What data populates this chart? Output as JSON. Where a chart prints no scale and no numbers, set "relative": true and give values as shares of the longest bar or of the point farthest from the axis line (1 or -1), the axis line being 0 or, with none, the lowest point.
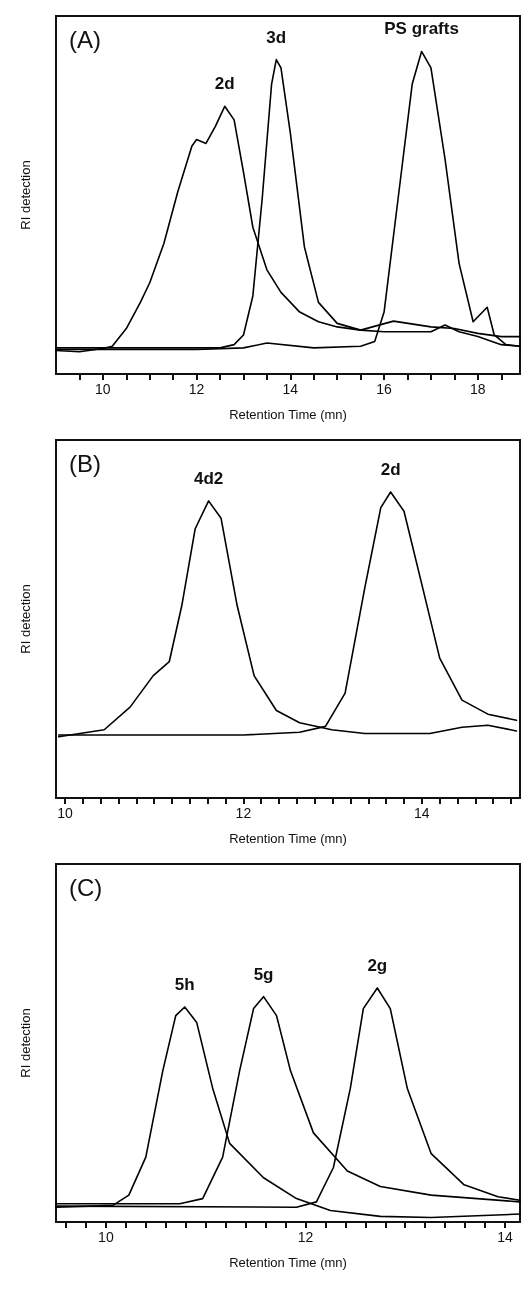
{
  "chart_data": [
    {
      "type": "line",
      "title": "(A)",
      "xlabel": "Retention Time (mn)",
      "ylabel": "RI detection",
      "relative": true,
      "xlim": [
        9,
        18.9
      ],
      "xticks": [
        {
          "value": 9.5,
          "label": null
        },
        10,
        {
          "value": 10.5,
          "label": null
        },
        {
          "value": 11,
          "label": null
        },
        {
          "value": 11.5,
          "label": null
        },
        12,
        {
          "value": 12.5,
          "label": null
        },
        {
          "value": 13,
          "label": null
        },
        {
          "value": 13.5,
          "label": null
        },
        14,
        {
          "value": 14.5,
          "label": null
        },
        {
          "value": 15,
          "label": null
        },
        {
          "value": 15.5,
          "label": null
        },
        16,
        {
          "value": 16.5,
          "label": null
        },
        {
          "value": 17,
          "label": null
        },
        {
          "value": 17.5,
          "label": null
        },
        18,
        {
          "value": 18.5,
          "label": null
        }
      ],
      "grid": false,
      "legend": false,
      "marker": "none",
      "line_style": "solid",
      "series": [
        {
          "name": "2d",
          "color": "#000000",
          "x": [
            9.0,
            9.5,
            10.0,
            10.2,
            10.5,
            10.8,
            11.0,
            11.3,
            11.6,
            11.9,
            12.0,
            12.2,
            12.4,
            12.6,
            12.8,
            13.0,
            13.2,
            13.5,
            13.8,
            14.2,
            14.6,
            15.0,
            15.5,
            16.2,
            17.0,
            17.5,
            18.0,
            18.5,
            18.9
          ],
          "values": [
            0.073,
            0.069,
            0.079,
            0.086,
            0.141,
            0.222,
            0.283,
            0.404,
            0.566,
            0.707,
            0.727,
            0.715,
            0.768,
            0.83,
            0.788,
            0.626,
            0.455,
            0.323,
            0.253,
            0.192,
            0.162,
            0.146,
            0.136,
            0.164,
            0.146,
            0.141,
            0.126,
            0.116,
            0.116
          ]
        },
        {
          "name": "3d",
          "color": "#000000",
          "x": [
            9.0,
            10.0,
            11.0,
            12.0,
            12.5,
            12.8,
            13.0,
            13.2,
            13.4,
            13.6,
            13.7,
            13.8,
            14.0,
            14.3,
            14.6,
            15.0,
            15.5,
            16.0,
            17.0,
            17.3,
            17.6,
            18.0,
            18.5,
            18.9
          ],
          "values": [
            0.081,
            0.081,
            0.081,
            0.081,
            0.081,
            0.091,
            0.121,
            0.242,
            0.545,
            0.899,
            0.975,
            0.949,
            0.747,
            0.394,
            0.222,
            0.157,
            0.136,
            0.131,
            0.131,
            0.152,
            0.131,
            0.116,
            0.091,
            0.086
          ]
        },
        {
          "name": "PS grafts",
          "color": "#000000",
          "x": [
            9.0,
            10.0,
            11.0,
            12.0,
            13.0,
            13.5,
            14.5,
            15.5,
            15.8,
            16.0,
            16.3,
            16.6,
            16.8,
            17.0,
            17.3,
            17.6,
            17.9,
            18.2,
            18.35,
            18.6,
            18.9
          ],
          "values": [
            0.076,
            0.076,
            0.076,
            0.076,
            0.081,
            0.096,
            0.081,
            0.086,
            0.101,
            0.192,
            0.545,
            0.899,
            1.0,
            0.949,
            0.667,
            0.343,
            0.162,
            0.207,
            0.121,
            0.091,
            0.086
          ]
        }
      ]
    },
    {
      "type": "line",
      "title": "(B)",
      "xlabel": "Retention Time (mn)",
      "ylabel": "RI detection",
      "relative": true,
      "xlim": [
        9.9,
        15.1
      ],
      "xticks": [
        10,
        {
          "value": 10.2,
          "label": null
        },
        {
          "value": 10.4,
          "label": null
        },
        {
          "value": 10.6,
          "label": null
        },
        {
          "value": 10.8,
          "label": null
        },
        {
          "value": 11,
          "label": null
        },
        {
          "value": 11.2,
          "label": null
        },
        {
          "value": 11.4,
          "label": null
        },
        {
          "value": 11.6,
          "label": null
        },
        {
          "value": 11.8,
          "label": null
        },
        12,
        {
          "value": 12.2,
          "label": null
        },
        {
          "value": 12.4,
          "label": null
        },
        {
          "value": 12.6,
          "label": null
        },
        {
          "value": 12.8,
          "label": null
        },
        {
          "value": 13,
          "label": null
        },
        {
          "value": 13.2,
          "label": null
        },
        {
          "value": 13.4,
          "label": null
        },
        {
          "value": 13.6,
          "label": null
        },
        {
          "value": 13.8,
          "label": null
        },
        14,
        {
          "value": 14.2,
          "label": null
        },
        {
          "value": 14.4,
          "label": null
        },
        {
          "value": 14.6,
          "label": null
        },
        {
          "value": 14.8,
          "label": null
        },
        {
          "value": 15,
          "label": null
        }
      ],
      "grid": false,
      "legend": false,
      "marker": "none",
      "line_style": "solid",
      "series": [
        {
          "name": "4d2",
          "color": "#000000",
          "x": [
            9.93,
            10.44,
            10.73,
            10.99,
            11.17,
            11.31,
            11.46,
            11.61,
            11.75,
            11.93,
            12.12,
            12.37,
            12.63,
            12.99,
            13.36,
            14.09,
            14.45,
            14.74,
            15.06
          ],
          "values": [
            0.2,
            0.223,
            0.297,
            0.4,
            0.446,
            0.629,
            0.88,
            0.971,
            0.914,
            0.629,
            0.4,
            0.286,
            0.246,
            0.223,
            0.211,
            0.211,
            0.231,
            0.238,
            0.219
          ]
        },
        {
          "name": "2d",
          "color": "#000000",
          "x": [
            9.93,
            11.0,
            12.0,
            12.63,
            12.92,
            13.14,
            13.36,
            13.54,
            13.65,
            13.8,
            14.01,
            14.2,
            14.45,
            14.74,
            15.06
          ],
          "values": [
            0.206,
            0.206,
            0.206,
            0.215,
            0.234,
            0.343,
            0.686,
            0.949,
            1.0,
            0.937,
            0.686,
            0.457,
            0.32,
            0.274,
            0.254
          ]
        }
      ]
    },
    {
      "type": "line",
      "title": "(C)",
      "xlabel": "Retention Time (mn)",
      "ylabel": "RI detection",
      "relative": true,
      "xlim": [
        9.5,
        14.15
      ],
      "xticks": [
        {
          "value": 9.6,
          "label": null
        },
        {
          "value": 9.8,
          "label": null
        },
        10,
        {
          "value": 10.2,
          "label": null
        },
        {
          "value": 10.4,
          "label": null
        },
        {
          "value": 10.6,
          "label": null
        },
        {
          "value": 10.8,
          "label": null
        },
        {
          "value": 11,
          "label": null
        },
        {
          "value": 11.2,
          "label": null
        },
        {
          "value": 11.4,
          "label": null
        },
        {
          "value": 11.6,
          "label": null
        },
        {
          "value": 11.8,
          "label": null
        },
        12,
        {
          "value": 12.2,
          "label": null
        },
        {
          "value": 12.4,
          "label": null
        },
        {
          "value": 12.6,
          "label": null
        },
        {
          "value": 12.8,
          "label": null
        },
        {
          "value": 13,
          "label": null
        },
        {
          "value": 13.2,
          "label": null
        },
        {
          "value": 13.4,
          "label": null
        },
        {
          "value": 13.6,
          "label": null
        },
        {
          "value": 13.8,
          "label": null
        },
        14
      ],
      "grid": false,
      "legend": false,
      "marker": "none",
      "line_style": "solid",
      "series": [
        {
          "name": "5h",
          "color": "#000000",
          "x": [
            9.5,
            10.07,
            10.23,
            10.4,
            10.57,
            10.7,
            10.79,
            10.91,
            11.07,
            11.24,
            11.58,
            11.91,
            12.25,
            12.75,
            13.26,
            14.15
          ],
          "values": [
            0.063,
            0.071,
            0.115,
            0.277,
            0.646,
            0.882,
            0.919,
            0.853,
            0.572,
            0.336,
            0.189,
            0.1,
            0.049,
            0.024,
            0.019,
            0.034
          ]
        },
        {
          "name": "5g",
          "color": "#000000",
          "x": [
            9.5,
            10.74,
            10.97,
            11.17,
            11.34,
            11.48,
            11.58,
            11.71,
            11.85,
            12.08,
            12.42,
            12.75,
            13.26,
            14.15
          ],
          "values": [
            0.078,
            0.078,
            0.1,
            0.277,
            0.646,
            0.912,
            0.963,
            0.882,
            0.646,
            0.381,
            0.218,
            0.152,
            0.115,
            0.086
          ]
        },
        {
          "name": "2g",
          "color": "#000000",
          "x": [
            9.5,
            11.91,
            12.11,
            12.28,
            12.45,
            12.58,
            12.72,
            12.85,
            13.02,
            13.26,
            13.59,
            13.93,
            14.15
          ],
          "values": [
            0.068,
            0.063,
            0.086,
            0.233,
            0.572,
            0.912,
            1.0,
            0.912,
            0.572,
            0.292,
            0.159,
            0.108,
            0.093
          ]
        }
      ]
    }
  ]
}
